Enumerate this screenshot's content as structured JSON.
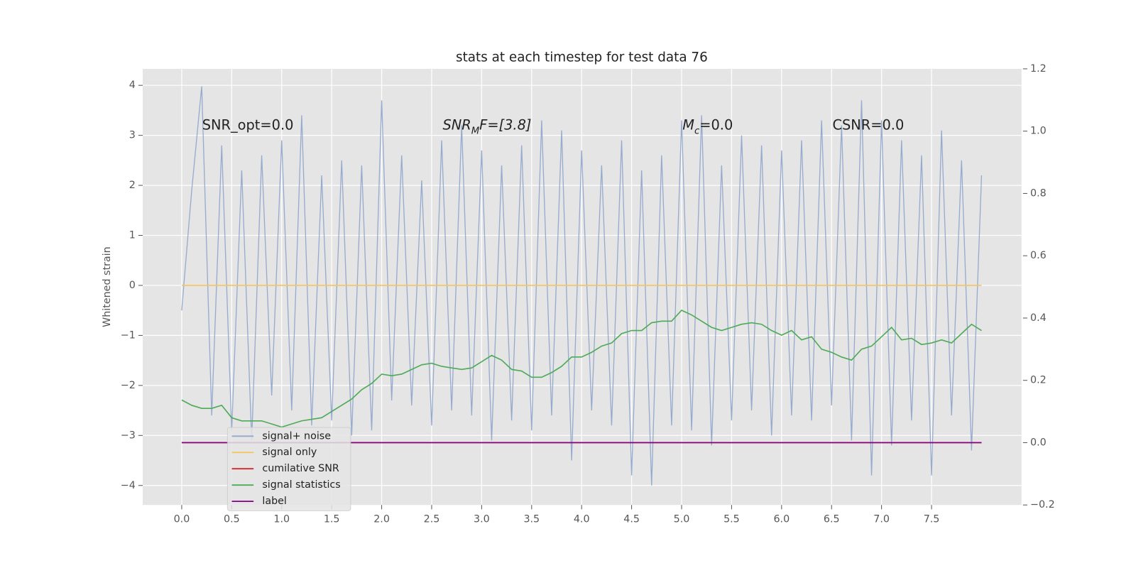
{
  "chart_data": {
    "type": "line",
    "title": "stats at each timestep for test data 76",
    "ylabel": "Whitened strain",
    "annotations": [
      [
        "SNR_opt=0.0"
      ],
      [
        "SNR",
        "M",
        "F=[3.8]"
      ],
      [
        "M",
        "c",
        "=0.0"
      ],
      [
        "CSNR=0.0"
      ]
    ],
    "x": [
      0,
      0.1,
      0.2,
      0.3,
      0.4,
      0.5,
      0.6,
      0.7,
      0.8,
      0.9,
      1,
      1.1,
      1.2,
      1.3,
      1.4,
      1.5,
      1.6,
      1.7,
      1.8,
      1.9,
      2,
      2.1,
      2.2,
      2.3,
      2.4,
      2.5,
      2.6,
      2.7,
      2.8,
      2.9,
      3,
      3.1,
      3.2,
      3.3,
      3.4,
      3.5,
      3.6,
      3.7,
      3.8,
      3.9,
      4,
      4.1,
      4.2,
      4.3,
      4.4,
      4.5,
      4.6,
      4.7,
      4.8,
      4.9,
      5,
      5.1,
      5.2,
      5.3,
      5.4,
      5.5,
      5.6,
      5.7,
      5.8,
      5.9,
      6,
      6.1,
      6.2,
      6.3,
      6.4,
      6.5,
      6.6,
      6.7,
      6.8,
      6.9,
      7,
      7.1,
      7.2,
      7.3,
      7.4,
      7.5,
      7.6,
      7.7,
      7.8,
      7.9,
      8
    ],
    "series": [
      {
        "name": "signal+ noise",
        "color": "#92a8cd",
        "axis": "y",
        "values": [
          -0.5,
          1.9,
          3.98,
          -2.6,
          2.8,
          -2.9,
          2.3,
          -3.1,
          2.6,
          -2.2,
          2.9,
          -2.5,
          3.4,
          -2.8,
          2.2,
          -2.7,
          2.5,
          -3.0,
          2.4,
          -2.9,
          3.7,
          -2.3,
          2.6,
          -2.4,
          2.1,
          -2.8,
          2.9,
          -2.5,
          3.2,
          -2.6,
          2.7,
          -3.1,
          2.4,
          -2.7,
          2.8,
          -2.9,
          3.3,
          -2.6,
          3.1,
          -3.5,
          2.7,
          -2.5,
          2.4,
          -2.8,
          2.9,
          -3.8,
          2.3,
          -4.0,
          2.6,
          -2.8,
          3.3,
          -2.9,
          3.4,
          -3.2,
          2.4,
          -2.7,
          3.0,
          -2.5,
          2.8,
          -3.0,
          2.7,
          -2.6,
          2.9,
          -2.7,
          3.3,
          -2.4,
          3.2,
          -3.1,
          3.7,
          -3.8,
          3.3,
          -3.2,
          2.9,
          -2.7,
          2.6,
          -3.8,
          3.1,
          -2.6,
          2.5,
          -3.3,
          2.2
        ]
      },
      {
        "name": "signal only",
        "color": "#f5c35a",
        "axis": "y",
        "values": [
          0,
          0,
          0,
          0,
          0,
          0,
          0,
          0,
          0,
          0,
          0,
          0,
          0,
          0,
          0,
          0,
          0,
          0,
          0,
          0,
          0,
          0,
          0,
          0,
          0,
          0,
          0,
          0,
          0,
          0,
          0,
          0,
          0,
          0,
          0,
          0,
          0,
          0,
          0,
          0,
          0,
          0,
          0,
          0,
          0,
          0,
          0,
          0,
          0,
          0,
          0,
          0,
          0,
          0,
          0,
          0,
          0,
          0,
          0,
          0,
          0,
          0,
          0,
          0,
          0,
          0,
          0,
          0,
          0,
          0,
          0,
          0,
          0,
          0,
          0,
          0,
          0,
          0,
          0,
          0,
          0
        ]
      },
      {
        "name": "cumilative SNR",
        "color": "#d62728",
        "axis": "y2",
        "values": [
          0,
          0,
          0,
          0,
          0,
          0,
          0,
          0,
          0,
          0,
          0,
          0,
          0,
          0,
          0,
          0,
          0,
          0,
          0,
          0,
          0,
          0,
          0,
          0,
          0,
          0,
          0,
          0,
          0,
          0,
          0,
          0,
          0,
          0,
          0,
          0,
          0,
          0,
          0,
          0,
          0,
          0,
          0,
          0,
          0,
          0,
          0,
          0,
          0,
          0,
          0,
          0,
          0,
          0,
          0,
          0,
          0,
          0,
          0,
          0,
          0,
          0,
          0,
          0,
          0,
          0,
          0,
          0,
          0,
          0,
          0,
          0,
          0,
          0,
          0,
          0,
          0,
          0,
          0,
          0,
          0
        ]
      },
      {
        "name": "signal statistics",
        "color": "#4daa57",
        "axis": "y2",
        "values": [
          0.137,
          0.12,
          0.11,
          0.11,
          0.12,
          0.08,
          0.07,
          0.07,
          0.07,
          0.06,
          0.05,
          0.06,
          0.07,
          0.075,
          0.08,
          0.1,
          0.12,
          0.14,
          0.17,
          0.19,
          0.22,
          0.215,
          0.22,
          0.235,
          0.25,
          0.255,
          0.245,
          0.24,
          0.235,
          0.24,
          0.26,
          0.28,
          0.265,
          0.235,
          0.23,
          0.21,
          0.21,
          0.225,
          0.245,
          0.275,
          0.275,
          0.29,
          0.31,
          0.32,
          0.35,
          0.36,
          0.36,
          0.385,
          0.39,
          0.39,
          0.425,
          0.41,
          0.39,
          0.37,
          0.36,
          0.37,
          0.38,
          0.385,
          0.38,
          0.36,
          0.345,
          0.36,
          0.33,
          0.34,
          0.3,
          0.29,
          0.275,
          0.265,
          0.3,
          0.31,
          0.34,
          0.37,
          0.33,
          0.335,
          0.315,
          0.32,
          0.33,
          0.32,
          0.35,
          0.38,
          0.36
        ]
      },
      {
        "name": "label",
        "color": "#800080",
        "axis": "y2",
        "values": [
          0,
          0,
          0,
          0,
          0,
          0,
          0,
          0,
          0,
          0,
          0,
          0,
          0,
          0,
          0,
          0,
          0,
          0,
          0,
          0,
          0,
          0,
          0,
          0,
          0,
          0,
          0,
          0,
          0,
          0,
          0,
          0,
          0,
          0,
          0,
          0,
          0,
          0,
          0,
          0,
          0,
          0,
          0,
          0,
          0,
          0,
          0,
          0,
          0,
          0,
          0,
          0,
          0,
          0,
          0,
          0,
          0,
          0,
          0,
          0,
          0,
          0,
          0,
          0,
          0,
          0,
          0,
          0,
          0,
          0,
          0,
          0,
          0,
          0,
          0,
          0,
          0,
          0,
          0,
          0,
          0
        ]
      }
    ],
    "xlim": [
      -0.39,
      8.4
    ],
    "xticks": [
      {
        "value": 0,
        "label": "0.0"
      },
      0.5,
      {
        "value": 1,
        "label": "1.0"
      },
      1.5,
      {
        "value": 2,
        "label": "2.0"
      },
      2.5,
      {
        "value": 3,
        "label": "3.0"
      },
      3.5,
      {
        "value": 4,
        "label": "4.0"
      },
      4.5,
      {
        "value": 5,
        "label": "5.0"
      },
      5.5,
      {
        "value": 6,
        "label": "6.0"
      },
      6.5,
      {
        "value": 7,
        "label": "7.0"
      },
      7.5
    ],
    "ylim": [
      -4.39,
      4.33
    ],
    "yticks": [
      {
        "value": -4,
        "label": "−4"
      },
      {
        "value": -3,
        "label": "−3"
      },
      {
        "value": -2,
        "label": "−2"
      },
      {
        "value": -1,
        "label": "−1"
      },
      0,
      1,
      2,
      3,
      4
    ],
    "y2lim": [
      -0.2,
      1.2
    ],
    "y2ticks": [
      {
        "value": -0.2,
        "label": "−0.2"
      },
      {
        "value": 0,
        "label": "0.0"
      },
      0.2,
      0.4,
      0.6,
      0.8,
      {
        "value": 1,
        "label": "1.0"
      },
      1.2
    ],
    "grid": true,
    "legend": "lower left"
  }
}
